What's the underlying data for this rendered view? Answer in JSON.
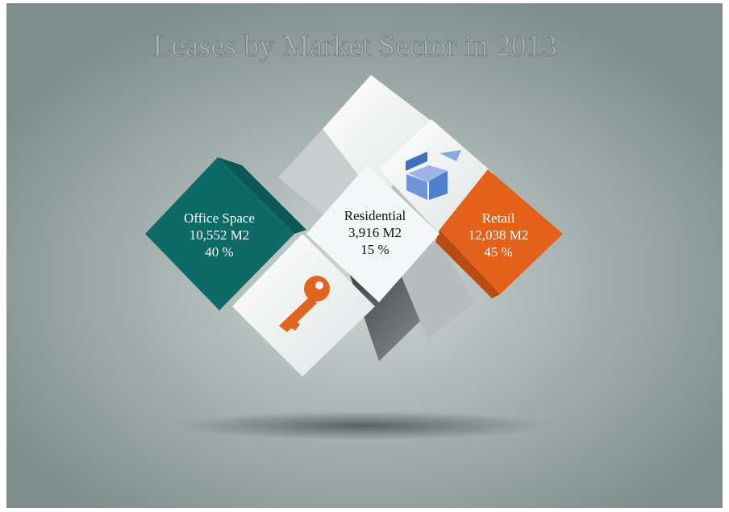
{
  "title": "Leases by Market Sector in 2013",
  "sectors": [
    {
      "label": "Office Space",
      "area": "10,552 M2",
      "share": "40 %"
    },
    {
      "label": "Residential",
      "area": "3,916 M2",
      "share": "15 %"
    },
    {
      "label": "Retail",
      "area": "12,038 M2",
      "share": "45 %"
    }
  ]
}
